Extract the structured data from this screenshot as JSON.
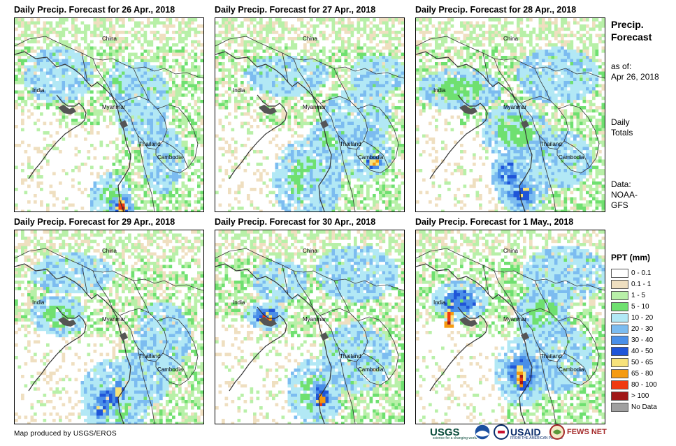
{
  "panels": [
    {
      "title": "Daily Precip. Forecast for 26 Apr., 2018"
    },
    {
      "title": "Daily Precip. Forecast for 27 Apr., 2018"
    },
    {
      "title": "Daily Precip. Forecast for 28 Apr., 2018"
    },
    {
      "title": "Daily Precip. Forecast for 29 Apr., 2018"
    },
    {
      "title": "Daily Precip. Forecast for 30 Apr., 2018"
    },
    {
      "title": "Daily Precip. Forecast for 1 May., 2018"
    }
  ],
  "place_labels": {
    "china": "China",
    "india": "India",
    "myanmar": "Myanmar",
    "thailand": "Thailand",
    "cambodia": "Cambodia"
  },
  "sidebar": {
    "title_line1": "Precip.",
    "title_line2": "Forecast",
    "asof_line1": "as of:",
    "asof_line2": "Apr 26, 2018",
    "period_line1": "Daily",
    "period_line2": "Totals",
    "data_line1": "Data:",
    "data_line2": "NOAA-",
    "data_line3": "GFS"
  },
  "legend": {
    "title": "PPT (mm)",
    "items": [
      {
        "label": "0 - 0.1",
        "color": "#ffffff"
      },
      {
        "label": "0.1 - 1",
        "color": "#efdfc0"
      },
      {
        "label": "1 - 5",
        "color": "#b8f0a8"
      },
      {
        "label": "5 - 10",
        "color": "#6fe070"
      },
      {
        "label": "10 - 20",
        "color": "#b2e8f5"
      },
      {
        "label": "20 - 30",
        "color": "#7cbcf0"
      },
      {
        "label": "30 - 40",
        "color": "#4a8fe8"
      },
      {
        "label": "40 - 50",
        "color": "#1f55d8"
      },
      {
        "label": "50 - 65",
        "color": "#f7e27a"
      },
      {
        "label": "65 - 80",
        "color": "#f59a10"
      },
      {
        "label": "80 - 100",
        "color": "#f03a10"
      },
      {
        "label": "> 100",
        "color": "#a01818"
      },
      {
        "label": "No Data",
        "color": "#a0a0a0"
      }
    ]
  },
  "credit": "Map produced by USGS/EROS",
  "logos": {
    "usgs": "USGS",
    "usgs_tagline": "science for a changing world",
    "usaid": "USAID",
    "usaid_tagline": "FROM THE AMERICAN PEOPLE",
    "fewsnet": "FEWS NET"
  }
}
